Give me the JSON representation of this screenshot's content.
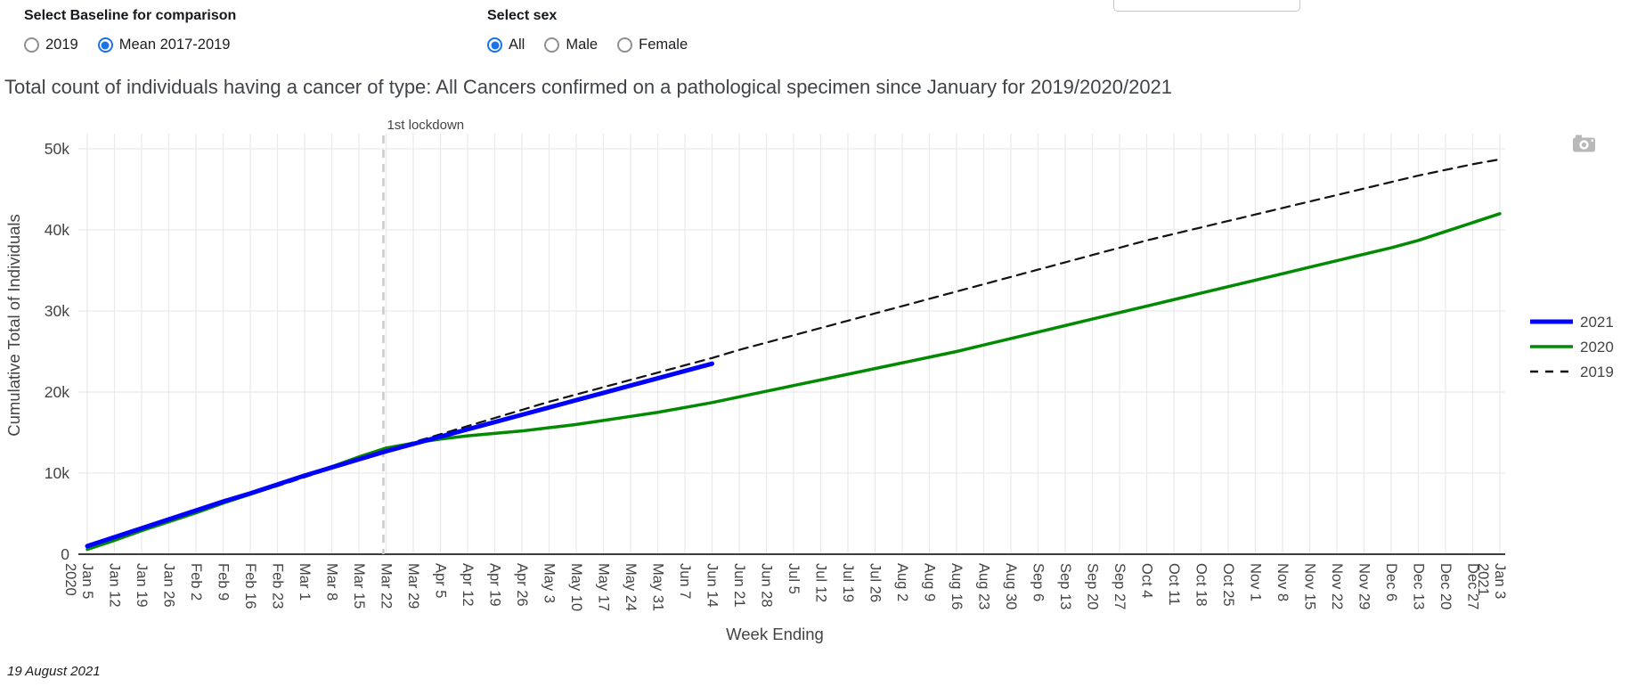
{
  "controls": {
    "baseline": {
      "label": "Select Baseline for comparison",
      "options": [
        {
          "label": "2019",
          "selected": false
        },
        {
          "label": "Mean 2017-2019",
          "selected": true
        }
      ]
    },
    "sex": {
      "label": "Select sex",
      "options": [
        {
          "label": "All",
          "selected": true
        },
        {
          "label": "Male",
          "selected": false
        },
        {
          "label": "Female",
          "selected": false
        }
      ]
    }
  },
  "footer": {
    "date": "19 August 2021"
  },
  "colors": {
    "radio_selected": "#1a73e8",
    "grid": "#e9e9e9",
    "axis": "#3c3c3c",
    "tick_text": "#444444",
    "lockdown_line": "#c9c9c9"
  },
  "chart_data": {
    "type": "line",
    "title": "Total count of individuals having a cancer of type: All Cancers confirmed on a pathological specimen since January for 2019/2020/2021",
    "xlabel": "Week Ending",
    "ylabel": "Cumulative Total of Individuals",
    "y_unit": "thousands of individuals",
    "ylim": [
      0,
      51.9
    ],
    "grid": true,
    "legend_position": "right",
    "yticks": {
      "labels": [
        "0",
        "10k",
        "20k",
        "30k",
        "40k",
        "50k"
      ],
      "values": [
        0,
        10,
        20,
        30,
        40,
        50
      ]
    },
    "categories": [
      "Jan 5",
      "Jan 12",
      "Jan 19",
      "Jan 26",
      "Feb 2",
      "Feb 9",
      "Feb 16",
      "Feb 23",
      "Mar 1",
      "Mar 8",
      "Mar 15",
      "Mar 22",
      "Mar 29",
      "Apr 5",
      "Apr 12",
      "Apr 19",
      "Apr 26",
      "May 3",
      "May 10",
      "May 17",
      "May 24",
      "May 31",
      "Jun 7",
      "Jun 14",
      "Jun 21",
      "Jun 28",
      "Jul 5",
      "Jul 12",
      "Jul 19",
      "Jul 26",
      "Aug 2",
      "Aug 9",
      "Aug 16",
      "Aug 23",
      "Aug 30",
      "Sep 6",
      "Sep 13",
      "Sep 20",
      "Sep 27",
      "Oct 4",
      "Oct 11",
      "Oct 18",
      "Oct 25",
      "Nov 1",
      "Nov 8",
      "Nov 15",
      "Nov 22",
      "Nov 29",
      "Dec 6",
      "Dec 13",
      "Dec 20",
      "Dec 27",
      "Jan 3"
    ],
    "first_tick_year": "2020",
    "last_tick_year": "2021",
    "annotation": {
      "text": "1st lockdown",
      "x_week_index": 10.9
    },
    "series": [
      {
        "name": "2021",
        "color": "#0000ff",
        "width": 5,
        "dash": "",
        "values": [
          1.0,
          2.1,
          3.2,
          4.3,
          5.4,
          6.5,
          7.5,
          8.6,
          9.7,
          10.7,
          11.7,
          12.7,
          13.6,
          14.5,
          15.4,
          16.3,
          17.2,
          18.1,
          19.0,
          19.9,
          20.8,
          21.7,
          22.6,
          23.5
        ]
      },
      {
        "name": "2020",
        "color": "#028a02",
        "width": 3.5,
        "dash": "",
        "values": [
          0.6,
          1.7,
          2.9,
          4.0,
          5.1,
          6.3,
          7.4,
          8.5,
          9.7,
          10.8,
          12.0,
          13.1,
          13.7,
          14.2,
          14.6,
          14.9,
          15.2,
          15.6,
          16.0,
          16.5,
          17.0,
          17.5,
          18.1,
          18.7,
          19.4,
          20.1,
          20.8,
          21.5,
          22.2,
          22.9,
          23.6,
          24.3,
          25.0,
          25.8,
          26.6,
          27.4,
          28.2,
          29.0,
          29.8,
          30.6,
          31.4,
          32.2,
          33.0,
          33.8,
          34.6,
          35.4,
          36.2,
          37.0,
          37.8,
          38.7,
          39.8,
          40.9,
          42.0
        ]
      },
      {
        "name": "2019",
        "color": "#111111",
        "width": 2.2,
        "dash": "10,7",
        "values": [
          0.8,
          1.9,
          3.0,
          4.1,
          5.2,
          6.3,
          7.4,
          8.4,
          9.5,
          10.6,
          11.7,
          12.8,
          13.8,
          14.8,
          15.8,
          16.8,
          17.8,
          18.8,
          19.7,
          20.6,
          21.5,
          22.4,
          23.3,
          24.2,
          25.2,
          26.1,
          27.0,
          27.9,
          28.8,
          29.7,
          30.6,
          31.5,
          32.4,
          33.3,
          34.2,
          35.1,
          36.0,
          36.9,
          37.8,
          38.7,
          39.5,
          40.3,
          41.1,
          41.9,
          42.7,
          43.5,
          44.3,
          45.1,
          45.9,
          46.7,
          47.4,
          48.1,
          48.7
        ]
      }
    ]
  }
}
